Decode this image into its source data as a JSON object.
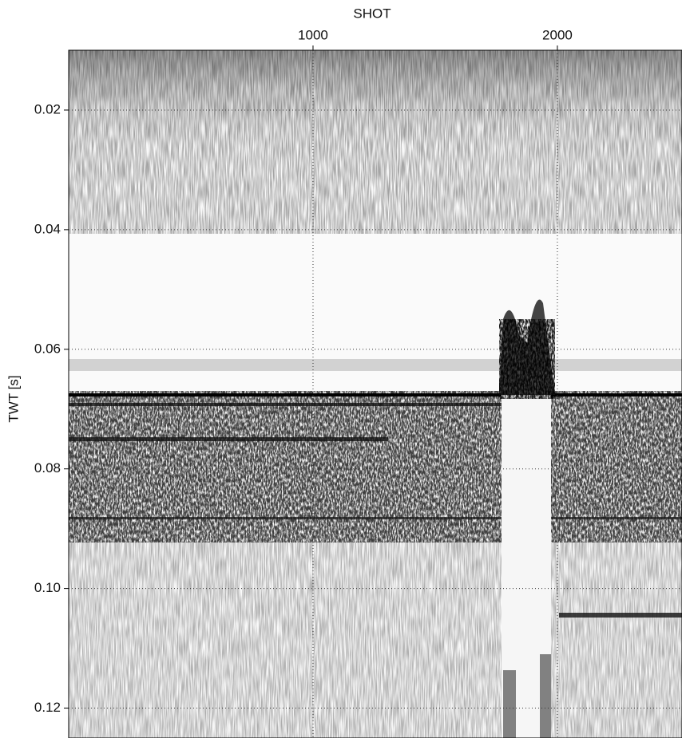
{
  "chart_data": {
    "type": "seismic-section",
    "x_label": "SHOT",
    "y_label": "TWT [s]",
    "xlim": [
      0,
      2510
    ],
    "xticks": [
      1000,
      2000
    ],
    "ylim": [
      0.01,
      0.125
    ],
    "y_inverted": true,
    "yticks": [
      0.02,
      0.04,
      0.06,
      0.08,
      {
        "value": 0.1,
        "label": "0.10"
      },
      0.12
    ],
    "grid": true,
    "colormap": "gray"
  }
}
